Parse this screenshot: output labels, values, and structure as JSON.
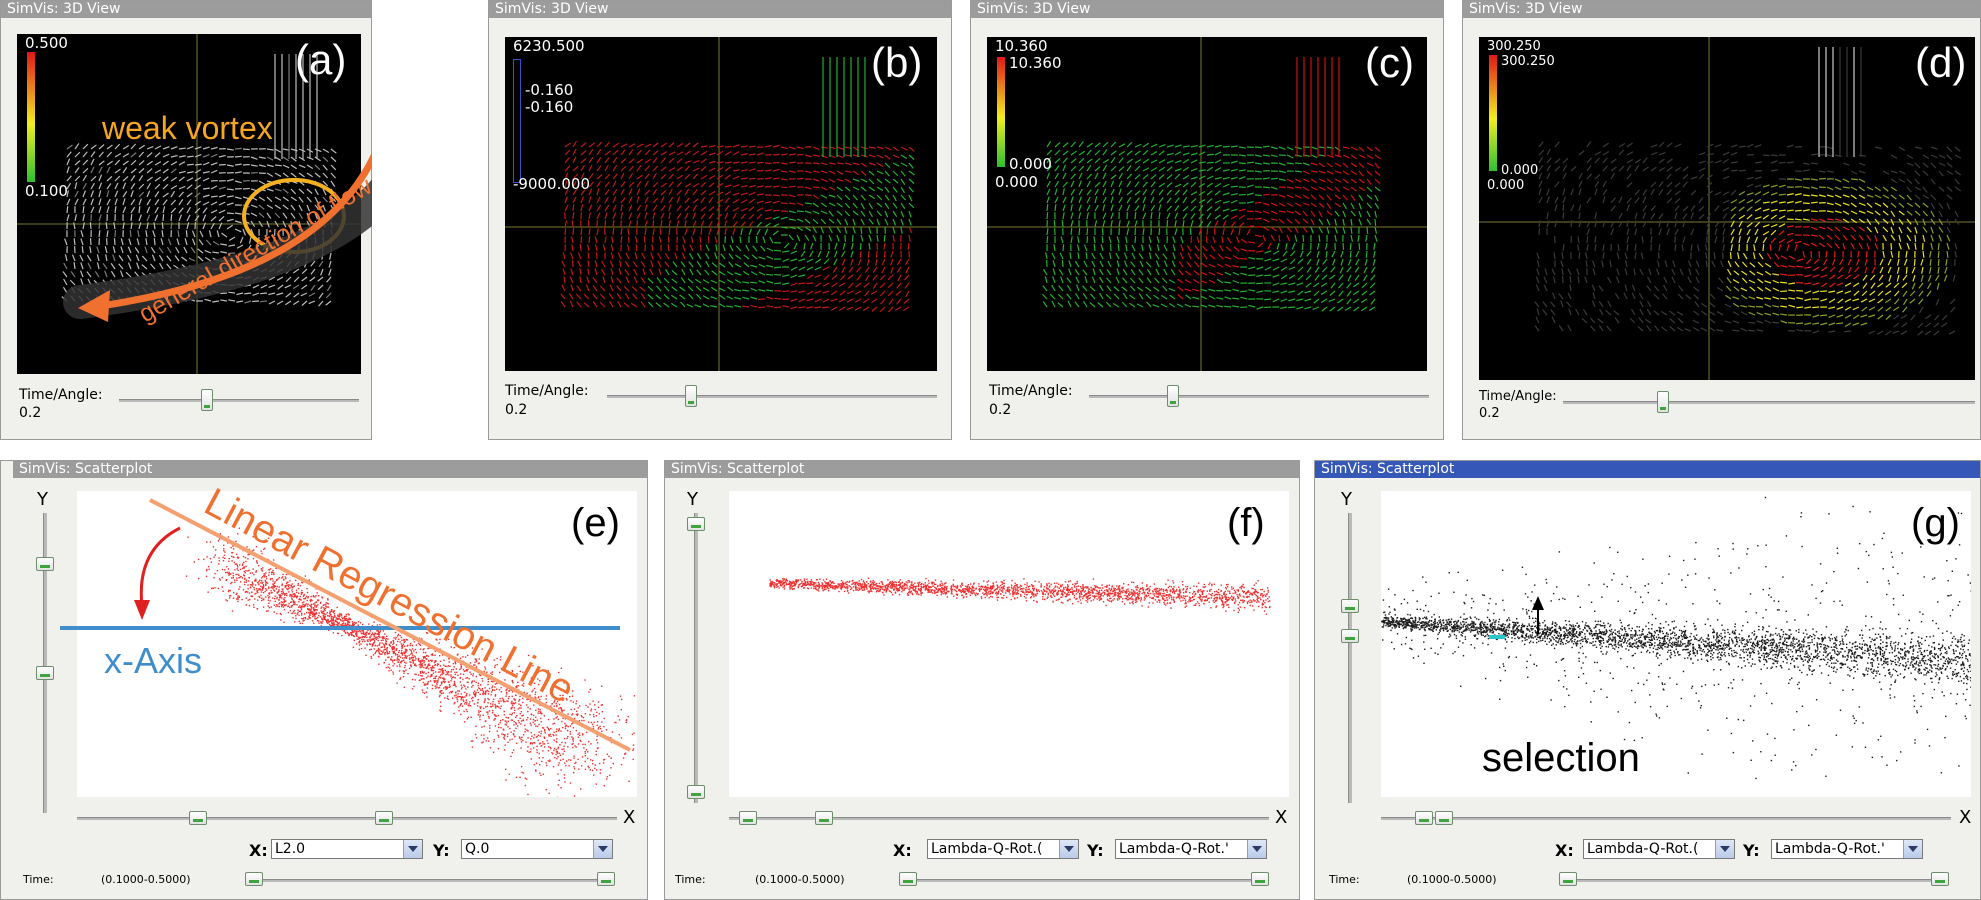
{
  "views": [
    {
      "title": "SimVis: 3D View",
      "label": "(a)",
      "cb_top": "0.500",
      "cb_bottom": "0.100",
      "time_label": "Time/Angle:",
      "time_value": "0.2"
    },
    {
      "title": "SimVis: 3D View",
      "label": "(b)",
      "cb_top": "6230.500",
      "cb_mid1": "-0.160",
      "cb_mid2": "-0.160",
      "cb_bottom": "-9000.000",
      "time_label": "Time/Angle:",
      "time_value": "0.2"
    },
    {
      "title": "SimVis: 3D View",
      "label": "(c)",
      "cb_top": "10.360",
      "cb_top2": "10.360",
      "cb_bottom": "0.000",
      "cb_bottom2": "0.000",
      "time_label": "Time/Angle:",
      "time_value": "0.2"
    },
    {
      "title": "SimVis: 3D View",
      "label": "(d)",
      "cb_top": "300.250",
      "cb_top2": "300.250",
      "cb_bottom": "0.000",
      "cb_bottom2": "0.000",
      "time_label": "Time/Angle:",
      "time_value": "0.2"
    }
  ],
  "annotations": {
    "weak_vortex": "weak vortex",
    "flow": "general direction of flow",
    "regression": "Linear Regression Line",
    "x_axis": "x-Axis",
    "selection": "selection"
  },
  "scatter": [
    {
      "title": "SimVis: Scatterplot",
      "label": "(e)",
      "y_letter": "Y",
      "x_letter": "X",
      "x_field_label": "X:",
      "x_field_value": "L2.0",
      "y_field_label": "Y:",
      "y_field_value": "Q.0",
      "time_label": "Time:",
      "time_range": "(0.1000-0.5000)"
    },
    {
      "title": "SimVis: Scatterplot",
      "label": "(f)",
      "y_letter": "Y",
      "x_letter": "X",
      "x_field_label": "X:",
      "x_field_value": "Lambda-Q-Rot.(",
      "y_field_label": "Y:",
      "y_field_value": "Lambda-Q-Rot.'",
      "time_label": "Time:",
      "time_range": "(0.1000-0.5000)"
    },
    {
      "title": "SimVis: Scatterplot",
      "label": "(g)",
      "y_letter": "Y",
      "x_letter": "X",
      "x_field_label": "X:",
      "x_field_value": "Lambda-Q-Rot.(",
      "y_field_label": "Y:",
      "y_field_value": "Lambda-Q-Rot.'",
      "time_label": "Time:",
      "time_range": "(0.1000-0.5000)"
    }
  ],
  "colors": {
    "title_bar": "#9c9c9c",
    "title_bar_active": "#3558b8",
    "annotation_orange": "#f07030",
    "annotation_blue": "#3f8ecb",
    "vortex_ring": "#f5b020"
  }
}
